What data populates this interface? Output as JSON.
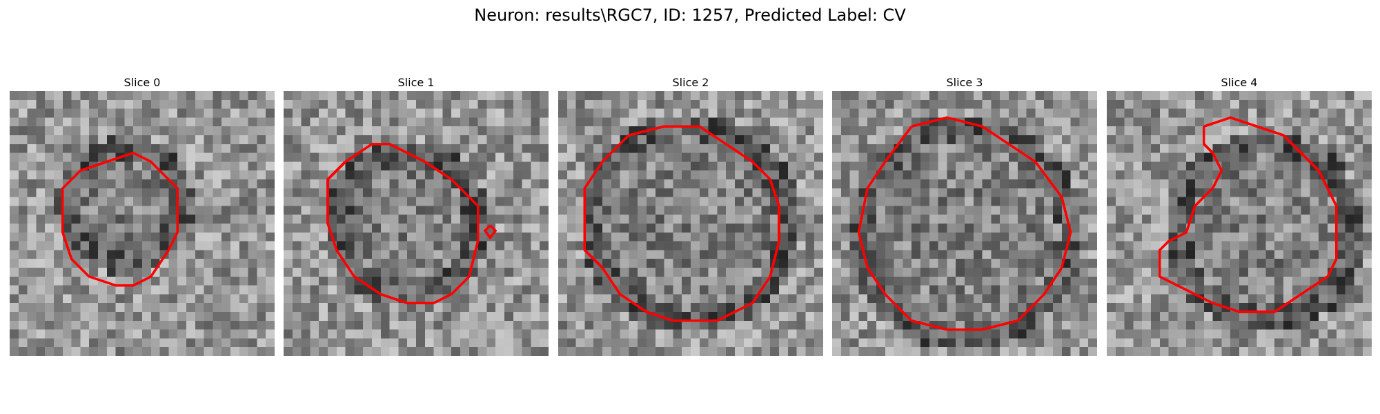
{
  "figure": {
    "title": "Neuron: results\\RGC7, ID: 1257, Predicted Label: CV",
    "contour_color": "#ff0000"
  },
  "panels": [
    {
      "title": "Slice 0",
      "contour_shape": "small octagonal outline, centered-left"
    },
    {
      "title": "Slice 1",
      "contour_shape": "outline with small separate loop at right"
    },
    {
      "title": "Slice 2",
      "contour_shape": "large octagonal outline"
    },
    {
      "title": "Slice 3",
      "contour_shape": "large octagonal outline"
    },
    {
      "title": "Slice 4",
      "contour_shape": "outline with notch at upper-left"
    }
  ]
}
